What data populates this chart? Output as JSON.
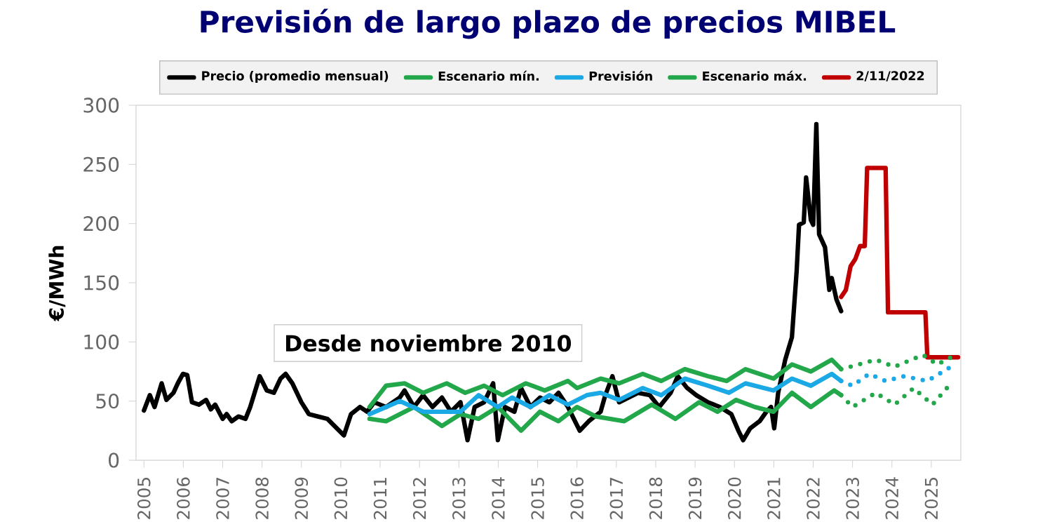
{
  "chart_data": {
    "type": "line",
    "title": "Previsión de largo plazo de precios MIBEL",
    "ylabel": "€/MWh",
    "xlim": [
      2004.8,
      2025.75
    ],
    "xticks": [
      2005,
      2006,
      2007,
      2008,
      2009,
      2010,
      2011,
      2012,
      2013,
      2014,
      2015,
      2016,
      2017,
      2018,
      2019,
      2020,
      2021,
      2022,
      2023,
      2024,
      2025
    ],
    "ylim": [
      0,
      300
    ],
    "yticks": [
      0,
      50,
      100,
      150,
      200,
      250,
      300
    ],
    "legend": "top",
    "marker": "none",
    "annotations": [
      "Desde noviembre 2010"
    ],
    "series": [
      {
        "name": "Precio (promedio mensual)",
        "color": "#000000",
        "line_style": "solid",
        "x": [
          2005.0,
          2005.15,
          2005.27,
          2005.45,
          2005.57,
          2005.75,
          2005.86,
          2005.99,
          2006.1,
          2006.22,
          2006.4,
          2006.58,
          2006.7,
          2006.81,
          2007.0,
          2007.1,
          2007.23,
          2007.4,
          2007.58,
          2007.7,
          2007.94,
          2008.12,
          2008.3,
          2008.47,
          2008.6,
          2008.77,
          2009.0,
          2009.19,
          2009.42,
          2009.66,
          2009.9,
          2010.08,
          2010.26,
          2010.49,
          2010.67,
          2010.85,
          2011.15,
          2011.5,
          2011.62,
          2011.86,
          2012.09,
          2012.33,
          2012.57,
          2012.8,
          2013.04,
          2013.22,
          2013.4,
          2013.64,
          2013.87,
          2013.99,
          2014.17,
          2014.41,
          2014.58,
          2014.82,
          2015.06,
          2015.3,
          2015.53,
          2015.77,
          2016.07,
          2016.3,
          2016.6,
          2016.72,
          2016.9,
          2017.07,
          2017.31,
          2017.55,
          2017.85,
          2018.09,
          2018.38,
          2018.56,
          2018.8,
          2019.03,
          2019.33,
          2019.63,
          2019.92,
          2020.1,
          2020.22,
          2020.4,
          2020.64,
          2020.81,
          2020.93,
          2021.01,
          2021.11,
          2021.29,
          2021.46,
          2021.58,
          2021.64,
          2021.76,
          2021.82,
          2021.94,
          2022.0,
          2022.08,
          2022.15,
          2022.3,
          2022.41,
          2022.47,
          2022.59,
          2022.71
        ],
        "values": [
          42,
          55,
          45,
          65,
          51,
          57,
          65,
          73,
          72,
          49,
          47,
          51,
          43,
          47,
          35,
          39,
          33,
          37,
          35,
          45,
          71,
          59,
          57,
          69,
          73,
          65,
          49,
          39,
          37,
          35,
          27,
          21,
          39,
          45,
          41,
          49,
          45,
          53,
          59,
          45,
          55,
          45,
          53,
          41,
          49,
          17,
          45,
          49,
          65,
          17,
          45,
          41,
          61,
          45,
          53,
          49,
          57,
          45,
          25,
          33,
          41,
          55,
          71,
          49,
          53,
          57,
          55,
          45,
          57,
          71,
          61,
          55,
          49,
          45,
          39,
          25,
          17,
          27,
          33,
          41,
          45,
          27,
          57,
          85,
          104,
          160,
          199,
          201,
          239,
          203,
          199,
          284,
          191,
          180,
          144,
          154,
          136,
          126
        ]
      },
      {
        "name": "Escenario mín.",
        "color": "#22a84a",
        "line_style": "solid",
        "x": [
          2010.73,
          2011.15,
          2011.86,
          2012.57,
          2013.04,
          2013.5,
          2013.99,
          2014.58,
          2015.06,
          2015.53,
          2016.0,
          2016.48,
          2017.2,
          2017.9,
          2018.5,
          2019.1,
          2019.57,
          2020.04,
          2020.52,
          2020.99,
          2021.46,
          2021.94,
          2022.53,
          2022.71
        ],
        "values": [
          35,
          33,
          45,
          29,
          39,
          35,
          45,
          25,
          41,
          33,
          45,
          37,
          33,
          47,
          35,
          49,
          41,
          51,
          45,
          41,
          57,
          45,
          59,
          55
        ]
      },
      {
        "name": "Previsión",
        "color": "#1ba9e6",
        "line_style": "solid",
        "x": [
          2010.73,
          2011.5,
          2012.1,
          2013.04,
          2013.5,
          2013.99,
          2014.35,
          2014.82,
          2015.3,
          2015.77,
          2016.25,
          2016.6,
          2017.07,
          2017.67,
          2018.14,
          2018.74,
          2019.33,
          2019.86,
          2020.28,
          2020.99,
          2021.46,
          2021.94,
          2022.47,
          2022.71
        ],
        "values": [
          39,
          50,
          41,
          41,
          55,
          45,
          53,
          45,
          55,
          47,
          55,
          57,
          51,
          61,
          55,
          69,
          63,
          57,
          65,
          59,
          69,
          63,
          73,
          67
        ]
      },
      {
        "name": "Escenario máx.",
        "color": "#22a84a",
        "line_style": "solid",
        "x": [
          2010.73,
          2011.15,
          2011.62,
          2012.09,
          2012.69,
          2013.16,
          2013.64,
          2014.11,
          2014.7,
          2015.18,
          2015.77,
          2016.0,
          2016.6,
          2017.07,
          2017.67,
          2018.14,
          2018.74,
          2019.33,
          2019.8,
          2020.28,
          2020.99,
          2021.46,
          2021.94,
          2022.47,
          2022.71
        ],
        "values": [
          45,
          63,
          65,
          57,
          65,
          57,
          63,
          55,
          65,
          59,
          67,
          61,
          69,
          65,
          73,
          67,
          77,
          71,
          67,
          77,
          69,
          81,
          75,
          85,
          77
        ]
      },
      {
        "name": "2/11/2022",
        "color": "#c00000",
        "line_style": "solid",
        "x": [
          2022.71,
          2022.83,
          2022.95,
          2023.07,
          2023.19,
          2023.31,
          2023.37,
          2023.84,
          2023.9,
          2024.85,
          2024.9,
          2025.68
        ],
        "values": [
          138,
          144,
          164,
          170,
          181,
          181,
          247,
          247,
          125,
          125,
          87,
          87
        ]
      },
      {
        "color": "#22a84a",
        "line_style": "dotted",
        "x": [
          2022.71,
          2023.0,
          2023.59,
          2024.07,
          2024.55,
          2025.03,
          2025.5
        ],
        "values": [
          55,
          45,
          57,
          47,
          61,
          47,
          65
        ]
      },
      {
        "color": "#1ba9e6",
        "line_style": "dotted",
        "x": [
          2022.71,
          2023.0,
          2023.42,
          2023.84,
          2024.31,
          2024.9,
          2025.5
        ],
        "values": [
          67,
          63,
          73,
          67,
          71,
          67,
          79
        ]
      },
      {
        "color": "#22a84a",
        "line_style": "dotted",
        "x": [
          2022.71,
          2022.94,
          2023.59,
          2024.06,
          2024.79,
          2025.15,
          2025.62
        ],
        "values": [
          77,
          79,
          85,
          79,
          89,
          81,
          89
        ]
      }
    ]
  }
}
